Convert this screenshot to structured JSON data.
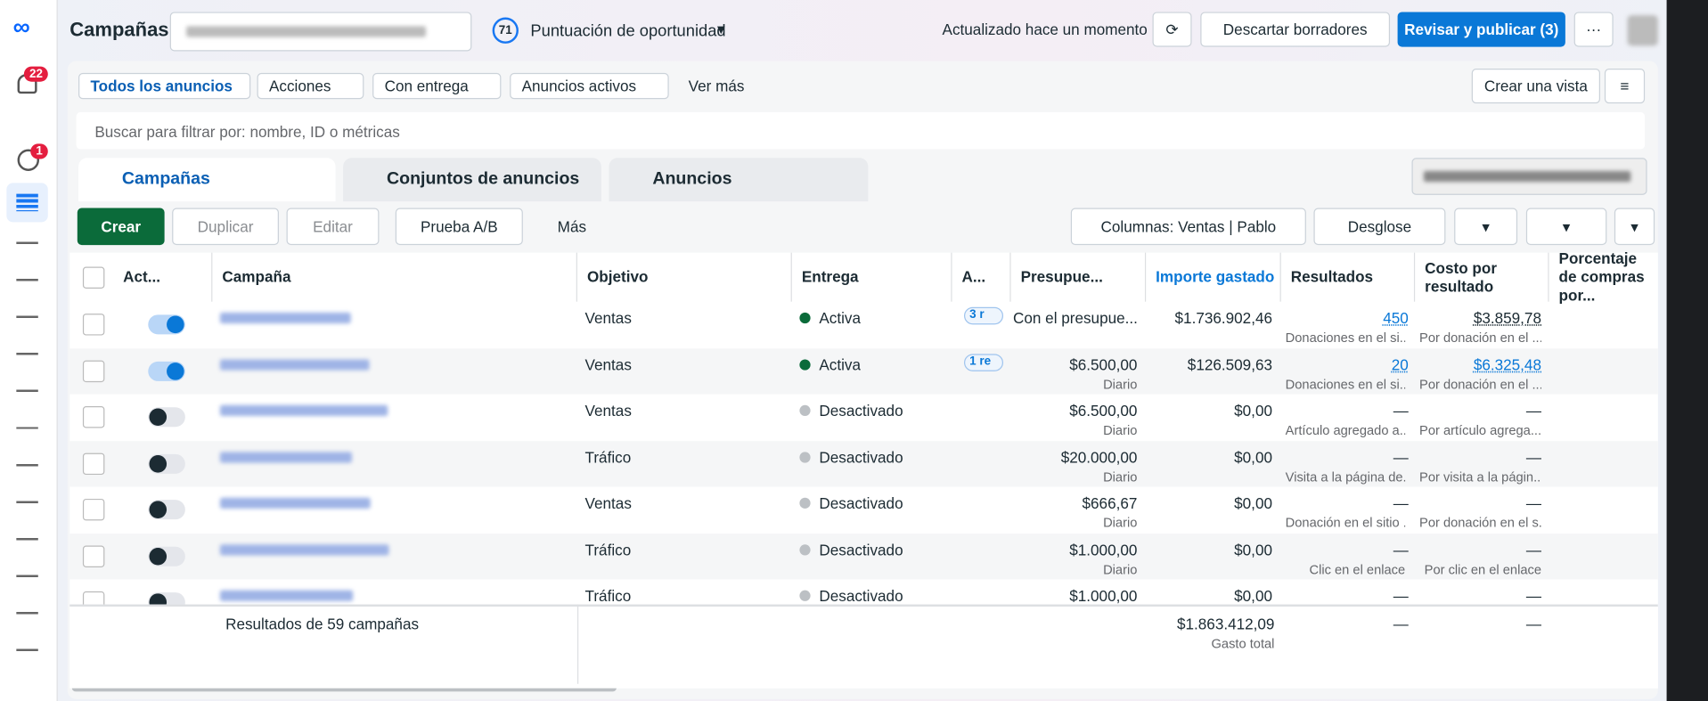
{
  "header": {
    "title": "Campañas",
    "opportunity_score": "71",
    "opportunity_label": "Puntuación de oportunidad",
    "updated": "Actualizado hace un momento",
    "discard": "Descartar borradores",
    "publish": "Revisar y publicar (3)"
  },
  "sidebar": {
    "notifications": "22",
    "alerts": "1"
  },
  "filters": [
    "Todos los anuncios",
    "Acciones",
    "Con entrega",
    "Anuncios activos",
    "Ver más"
  ],
  "create_view": "Crear una vista",
  "search_placeholder": "Buscar para filtrar por: nombre, ID o métricas",
  "tabs": [
    "Campañas",
    "Conjuntos de anuncios",
    "Anuncios"
  ],
  "toolbar": {
    "create": "Crear",
    "duplicate": "Duplicar",
    "edit": "Editar",
    "ab_test": "Prueba A/B",
    "more": "Más",
    "columns": "Columnas: Ventas | Pablo",
    "breakdown": "Desglose"
  },
  "table": {
    "columns": [
      "Act...",
      "Campaña",
      "Objetivo",
      "Entrega",
      "A...",
      "Presupue...",
      "Importe gastado",
      "Resultados",
      "Costo por resultado",
      "Porcentaje de compras por..."
    ],
    "rows": [
      {
        "on": true,
        "objective": "Ventas",
        "delivery": "Activa",
        "attribution": "3 r",
        "budget": "Con el presupue...",
        "spent": "$1.736.902,46",
        "results": "450",
        "results_sub": "Donaciones en el si...",
        "cost": "$3.859,78",
        "cost_sub": "Por donación en el ..."
      },
      {
        "on": true,
        "objective": "Ventas",
        "delivery": "Activa",
        "attribution": "1 re",
        "budget": "$6.500,00",
        "budget_sub": "Diario",
        "spent": "$126.509,63",
        "results": "20",
        "results_sub": "Donaciones en el si...",
        "cost": "$6.325,48",
        "cost_sub": "Por donación en el ..."
      },
      {
        "on": false,
        "objective": "Ventas",
        "delivery": "Desactivado",
        "budget": "$6.500,00",
        "budget_sub": "Diario",
        "spent": "$0,00",
        "results": "—",
        "results_sub": "Artículo agregado a...",
        "cost": "—",
        "cost_sub": "Por artículo agrega..."
      },
      {
        "on": false,
        "objective": "Tráfico",
        "delivery": "Desactivado",
        "budget": "$20.000,00",
        "budget_sub": "Diario",
        "spent": "$0,00",
        "results": "—",
        "results_sub": "Visita a la página de...",
        "cost": "—",
        "cost_sub": "Por visita a la págin..."
      },
      {
        "on": false,
        "objective": "Ventas",
        "delivery": "Desactivado",
        "budget": "$666,67",
        "budget_sub": "Diario",
        "spent": "$0,00",
        "results": "—",
        "results_sub": "Donación en el sitio ...",
        "cost": "—",
        "cost_sub": "Por donación en el s..."
      },
      {
        "on": false,
        "objective": "Tráfico",
        "delivery": "Desactivado",
        "budget": "$1.000,00",
        "budget_sub": "Diario",
        "spent": "$0,00",
        "results": "—",
        "results_sub": "Clic en el enlace",
        "cost": "—",
        "cost_sub": "Por clic en el enlace"
      },
      {
        "on": false,
        "objective": "Tráfico",
        "delivery": "Desactivado",
        "budget": "$1.000,00",
        "spent": "$0,00",
        "results": "—",
        "cost": "—"
      }
    ],
    "footer": {
      "summary": "Resultados de 59 campañas",
      "spent": "$1.863.412,09",
      "spent_label": "Gasto total",
      "results": "—",
      "cost": "—"
    }
  }
}
